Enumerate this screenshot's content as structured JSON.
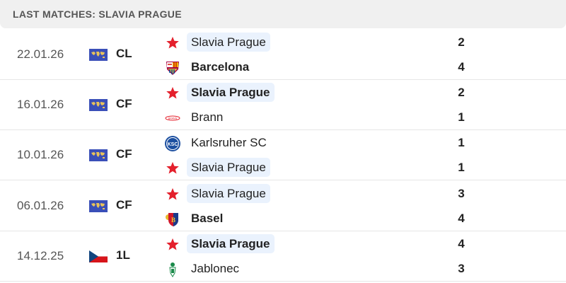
{
  "header": {
    "title": "LAST MATCHES: SLAVIA PRAGUE"
  },
  "colors": {
    "highlight": "#eaf2fd",
    "slavia_star": "#e4202c",
    "comp_flag": "#3a4fb8"
  },
  "matches": [
    {
      "date": "22.01.26",
      "comp": "CL",
      "comp_icon": "world-map-icon",
      "home": {
        "name": "Slavia Prague",
        "logo": "slavia-star-icon",
        "score": "2",
        "bold": false,
        "highlight": true
      },
      "away": {
        "name": "Barcelona",
        "logo": "barcelona-crest-icon",
        "score": "4",
        "bold": true,
        "highlight": false
      }
    },
    {
      "date": "16.01.26",
      "comp": "CF",
      "comp_icon": "world-map-icon",
      "home": {
        "name": "Slavia Prague",
        "logo": "slavia-star-icon",
        "score": "2",
        "bold": true,
        "highlight": true
      },
      "away": {
        "name": "Brann",
        "logo": "brann-crest-icon",
        "score": "1",
        "bold": false,
        "highlight": false
      }
    },
    {
      "date": "10.01.26",
      "comp": "CF",
      "comp_icon": "world-map-icon",
      "home": {
        "name": "Karlsruher SC",
        "logo": "ksc-crest-icon",
        "score": "1",
        "bold": false,
        "highlight": false
      },
      "away": {
        "name": "Slavia Prague",
        "logo": "slavia-star-icon",
        "score": "1",
        "bold": false,
        "highlight": true
      }
    },
    {
      "date": "06.01.26",
      "comp": "CF",
      "comp_icon": "world-map-icon",
      "home": {
        "name": "Slavia Prague",
        "logo": "slavia-star-icon",
        "score": "3",
        "bold": false,
        "highlight": true
      },
      "away": {
        "name": "Basel",
        "logo": "basel-crest-icon",
        "score": "4",
        "bold": true,
        "highlight": false
      }
    },
    {
      "date": "14.12.25",
      "comp": "1L",
      "comp_icon": "czech-flag-icon",
      "home": {
        "name": "Slavia Prague",
        "logo": "slavia-star-icon",
        "score": "4",
        "bold": true,
        "highlight": true
      },
      "away": {
        "name": "Jablonec",
        "logo": "jablonec-crest-icon",
        "score": "3",
        "bold": false,
        "highlight": false
      }
    }
  ]
}
